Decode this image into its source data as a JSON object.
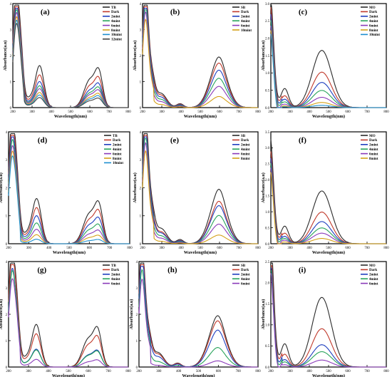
{
  "figure": {
    "panel_labels": [
      "(a)",
      "(b)",
      "(c)",
      "(d)",
      "(e)",
      "(f)",
      "(g)",
      "(h)",
      "(i)"
    ]
  },
  "chart_data": [
    {
      "type": "line",
      "panel_label": "(a)",
      "ylabel": "Absorbance(a.u)",
      "xlabel": "Wavelength(nm)",
      "xlim": [
        200,
        800
      ],
      "ylim": [
        0,
        4
      ],
      "xticks": [
        "200",
        "300",
        "400",
        "500",
        "600",
        "700",
        "800"
      ],
      "yticks": [
        "0",
        "1",
        "2",
        "3",
        "4"
      ],
      "legend_position": "top-right",
      "bands": "TB",
      "series": [
        {
          "name": "TB",
          "color": "#2b2b2b",
          "scale": 1.0
        },
        {
          "name": "Dark",
          "color": "#c0392b",
          "scale": 0.78
        },
        {
          "name": "2mint",
          "color": "#1f3fbf",
          "scale": 0.62
        },
        {
          "name": "4mint",
          "color": "#27a35a",
          "scale": 0.52
        },
        {
          "name": "6mint",
          "color": "#8a3ab9",
          "scale": 0.45
        },
        {
          "name": "8mint",
          "color": "#d4a017",
          "scale": 0.36
        },
        {
          "name": "10mint",
          "color": "#1e8fcf",
          "scale": 0.3
        },
        {
          "name": "12mint",
          "color": "#444444",
          "scale": 0.24
        }
      ]
    },
    {
      "type": "line",
      "panel_label": "(b)",
      "ylabel": "Absorbance(a.u)",
      "xlabel": "Wavelength(nm)",
      "xlim": [
        200,
        800
      ],
      "ylim": [
        0,
        4
      ],
      "xticks": [
        "200",
        "300",
        "400",
        "500",
        "600",
        "700",
        "800"
      ],
      "yticks": [
        "0",
        "1",
        "2",
        "3",
        "4"
      ],
      "legend_position": "top-right",
      "bands": "SB",
      "series": [
        {
          "name": "SB",
          "color": "#2b2b2b",
          "scale": 1.0
        },
        {
          "name": "Dark",
          "color": "#c0392b",
          "scale": 0.88
        },
        {
          "name": "2mint",
          "color": "#1f3fbf",
          "scale": 0.74
        },
        {
          "name": "4mint",
          "color": "#27a35a",
          "scale": 0.58
        },
        {
          "name": "6mint",
          "color": "#8a3ab9",
          "scale": 0.42
        },
        {
          "name": "10mint",
          "color": "#d4a017",
          "scale": 0.22
        }
      ]
    },
    {
      "type": "line",
      "panel_label": "(c)",
      "ylabel": "Absorbance(a.u)",
      "xlabel": "Wavelength(nm)",
      "xlim": [
        200,
        800
      ],
      "ylim": [
        0,
        3
      ],
      "xticks": [
        "200",
        "300",
        "400",
        "500",
        "600",
        "700",
        "800"
      ],
      "yticks": [
        "0.0",
        "0.5",
        "1.0",
        "1.5",
        "2.0",
        "2.5",
        "3.0"
      ],
      "legend_position": "top-right",
      "bands": "MO",
      "series": [
        {
          "name": "MO",
          "color": "#2b2b2b",
          "scale": 1.0
        },
        {
          "name": "Dark",
          "color": "#c0392b",
          "scale": 0.62
        },
        {
          "name": "2mint",
          "color": "#1f3fbf",
          "scale": 0.44
        },
        {
          "name": "4mint",
          "color": "#27a35a",
          "scale": 0.3
        },
        {
          "name": "6mint",
          "color": "#8a3ab9",
          "scale": 0.18
        },
        {
          "name": "8mint",
          "color": "#d4a017",
          "scale": 0.09
        },
        {
          "name": "10mint",
          "color": "#1e8fcf",
          "scale": 0.04
        }
      ]
    },
    {
      "type": "line",
      "panel_label": "(d)",
      "ylabel": "Absorbance(a.u)",
      "xlabel": "Wavelength(nm)",
      "xlim": [
        200,
        800
      ],
      "ylim": [
        0,
        4
      ],
      "xticks": [
        "200",
        "300",
        "400",
        "500",
        "600",
        "700",
        "800"
      ],
      "yticks": [
        "0",
        "1",
        "2",
        "3",
        "4"
      ],
      "legend_position": "top-right",
      "bands": "TB",
      "series": [
        {
          "name": "TB",
          "color": "#2b2b2b",
          "scale": 1.0
        },
        {
          "name": "Dark",
          "color": "#c0392b",
          "scale": 0.8
        },
        {
          "name": "2mint",
          "color": "#1f3fbf",
          "scale": 0.62
        },
        {
          "name": "4mint",
          "color": "#27a35a",
          "scale": 0.46
        },
        {
          "name": "6mint",
          "color": "#8a3ab9",
          "scale": 0.32
        },
        {
          "name": "8mint",
          "color": "#d4a017",
          "scale": 0.2
        },
        {
          "name": "10mint",
          "color": "#1e8fcf",
          "scale": 0.1
        }
      ]
    },
    {
      "type": "line",
      "panel_label": "(e)",
      "ylabel": "Absorbance(a.u)",
      "xlabel": "Wavelength(nm)",
      "xlim": [
        200,
        800
      ],
      "ylim": [
        0,
        4
      ],
      "xticks": [
        "200",
        "300",
        "400",
        "500",
        "600",
        "700",
        "800"
      ],
      "yticks": [
        "0",
        "1",
        "2",
        "3",
        "4"
      ],
      "legend_position": "top-right",
      "bands": "SB",
      "series": [
        {
          "name": "SB",
          "color": "#2b2b2b",
          "scale": 1.0
        },
        {
          "name": "Dark",
          "color": "#c0392b",
          "scale": 0.78
        },
        {
          "name": "2mint",
          "color": "#1f3fbf",
          "scale": 0.7
        },
        {
          "name": "4mint",
          "color": "#27a35a",
          "scale": 0.52
        },
        {
          "name": "6mint",
          "color": "#8a3ab9",
          "scale": 0.36
        },
        {
          "name": "8mint",
          "color": "#d4a017",
          "scale": 0.16
        }
      ]
    },
    {
      "type": "line",
      "panel_label": "(f)",
      "ylabel": "Absorbance(a.u)",
      "xlabel": "Wavelength(nm)",
      "xlim": [
        200,
        800
      ],
      "ylim": [
        0,
        3.5
      ],
      "xticks": [
        "200",
        "300",
        "400",
        "500",
        "600",
        "700",
        "800"
      ],
      "yticks": [
        "0.0",
        "0.5",
        "1.0",
        "1.5",
        "2.0",
        "2.5",
        "3.0",
        "3.5"
      ],
      "legend_position": "top-right",
      "bands": "MO",
      "series": [
        {
          "name": "MO",
          "color": "#2b2b2b",
          "scale": 1.0
        },
        {
          "name": "Dark",
          "color": "#c0392b",
          "scale": 0.6
        },
        {
          "name": "2mint",
          "color": "#1f3fbf",
          "scale": 0.42
        },
        {
          "name": "4mint",
          "color": "#27a35a",
          "scale": 0.3
        },
        {
          "name": "6mint",
          "color": "#8a3ab9",
          "scale": 0.2
        },
        {
          "name": "8mint",
          "color": "#d4a017",
          "scale": 0.1
        }
      ]
    },
    {
      "type": "line",
      "panel_label": "(g)",
      "ylabel": "Absorbance(a.u)",
      "xlabel": "Wavelength(nm)",
      "xlim": [
        200,
        800
      ],
      "ylim": [
        0,
        4
      ],
      "xticks": [
        "200",
        "300",
        "400",
        "500",
        "600",
        "700",
        "800"
      ],
      "yticks": [
        "0",
        "1",
        "2",
        "3",
        "4"
      ],
      "legend_position": "top-right",
      "bands": "TB",
      "series": [
        {
          "name": "TB",
          "color": "#2b2b2b",
          "scale": 1.0
        },
        {
          "name": "Dark",
          "color": "#c0392b",
          "scale": 0.78
        },
        {
          "name": "2mint",
          "color": "#1f3fbf",
          "scale": 0.42
        },
        {
          "name": "4mint",
          "color": "#27a35a",
          "scale": 0.4
        },
        {
          "name": "6mint",
          "color": "#8a3ab9",
          "scale": 0.18
        }
      ]
    },
    {
      "type": "line",
      "panel_label": "(h)",
      "ylabel": "Absorbance(a.u)",
      "xlabel": "Wavelength(nm)",
      "xlim": [
        200,
        800
      ],
      "ylim": [
        0,
        4
      ],
      "xticks": [
        "200",
        "300",
        "400",
        "500",
        "600",
        "700",
        "800"
      ],
      "yticks": [
        "0",
        "1",
        "2",
        "3",
        "4"
      ],
      "legend_position": "top-right",
      "bands": "SB",
      "series": [
        {
          "name": "SB",
          "color": "#2b2b2b",
          "scale": 1.0
        },
        {
          "name": "Dark",
          "color": "#c0392b",
          "scale": 0.9
        },
        {
          "name": "2mint",
          "color": "#1f3fbf",
          "scale": 0.72
        },
        {
          "name": "4mint",
          "color": "#27a35a",
          "scale": 0.38
        },
        {
          "name": "6mint",
          "color": "#8a3ab9",
          "scale": 0.12
        }
      ]
    },
    {
      "type": "line",
      "panel_label": "(i)",
      "ylabel": "Absorbance(a.u)",
      "xlabel": "Wavelength(nm)",
      "xlim": [
        200,
        800
      ],
      "ylim": [
        0,
        2.5
      ],
      "xticks": [
        "200",
        "300",
        "400",
        "500",
        "600",
        "700",
        "800"
      ],
      "yticks": [
        "0.0",
        "0.5",
        "1.0",
        "1.5",
        "2.0",
        "2.5"
      ],
      "legend_position": "top-right",
      "bands": "MO",
      "series": [
        {
          "name": "MO",
          "color": "#2b2b2b",
          "scale": 1.0
        },
        {
          "name": "Dark",
          "color": "#c0392b",
          "scale": 0.55
        },
        {
          "name": "2mint",
          "color": "#1f3fbf",
          "scale": 0.32
        },
        {
          "name": "4mint",
          "color": "#27a35a",
          "scale": 0.22
        },
        {
          "name": "6mint",
          "color": "#8a3ab9",
          "scale": 0.1
        }
      ]
    }
  ]
}
